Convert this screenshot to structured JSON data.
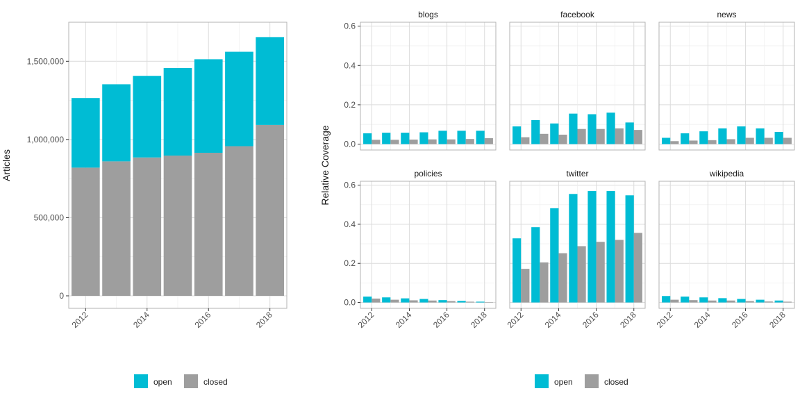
{
  "colors": {
    "open": "#00BCD4",
    "closed": "#9E9E9E",
    "grid": "#dcdcdc",
    "panel_border": "#b3b3b3"
  },
  "legend": {
    "items": [
      {
        "key": "open",
        "label": "open"
      },
      {
        "key": "closed",
        "label": "closed"
      }
    ]
  },
  "chart_data": [
    {
      "type": "bar",
      "stacked": true,
      "x": [
        2012,
        2013,
        2014,
        2015,
        2016,
        2017,
        2018
      ],
      "x_tick_labels": [
        "2012",
        "2014",
        "2016",
        "2018"
      ],
      "y_tick_labels": [
        "0",
        "500,000",
        "1,000,000",
        "1,500,000"
      ],
      "ylabel": "Articles",
      "xlabel": "",
      "ylim": [
        0,
        1750000
      ],
      "grid": true,
      "legend_position": "bottom",
      "series": [
        {
          "name": "closed",
          "values": [
            820000,
            860000,
            885000,
            897000,
            915000,
            957000,
            1093000
          ]
        },
        {
          "name": "open",
          "values": [
            445000,
            493000,
            522000,
            560000,
            598000,
            604000,
            562000
          ]
        }
      ]
    },
    {
      "type": "bar",
      "grouped": true,
      "faceted": true,
      "x": [
        2012,
        2013,
        2014,
        2015,
        2016,
        2017,
        2018
      ],
      "x_tick_labels": [
        "2012",
        "2014",
        "2016",
        "2018"
      ],
      "y_tick_labels": [
        "0.0",
        "0.2",
        "0.4",
        "0.6"
      ],
      "ylabel": "Relative Coverage",
      "xlabel": "",
      "ylim": [
        -0.03,
        0.62
      ],
      "grid": true,
      "legend_position": "bottom",
      "facets": [
        {
          "title": "blogs",
          "open": [
            0.055,
            0.058,
            0.058,
            0.06,
            0.068,
            0.068,
            0.068
          ],
          "closed": [
            0.022,
            0.022,
            0.023,
            0.024,
            0.024,
            0.026,
            0.03
          ]
        },
        {
          "title": "facebook",
          "open": [
            0.09,
            0.122,
            0.105,
            0.155,
            0.152,
            0.16,
            0.11
          ],
          "closed": [
            0.035,
            0.052,
            0.048,
            0.077,
            0.077,
            0.08,
            0.072
          ]
        },
        {
          "title": "news",
          "open": [
            0.032,
            0.055,
            0.065,
            0.08,
            0.09,
            0.08,
            0.062
          ],
          "closed": [
            0.015,
            0.018,
            0.02,
            0.025,
            0.032,
            0.032,
            0.032
          ]
        },
        {
          "title": "policies",
          "open": [
            0.03,
            0.026,
            0.021,
            0.018,
            0.012,
            0.008,
            0.004
          ],
          "closed": [
            0.02,
            0.014,
            0.011,
            0.01,
            0.007,
            0.004,
            0.002
          ]
        },
        {
          "title": "twitter",
          "open": [
            0.328,
            0.385,
            0.482,
            0.555,
            0.57,
            0.57,
            0.548
          ],
          "closed": [
            0.172,
            0.205,
            0.252,
            0.288,
            0.31,
            0.32,
            0.356
          ]
        },
        {
          "title": "wikipedia",
          "open": [
            0.033,
            0.03,
            0.026,
            0.022,
            0.018,
            0.014,
            0.01
          ],
          "closed": [
            0.014,
            0.012,
            0.01,
            0.01,
            0.007,
            0.005,
            0.004
          ]
        }
      ]
    }
  ]
}
